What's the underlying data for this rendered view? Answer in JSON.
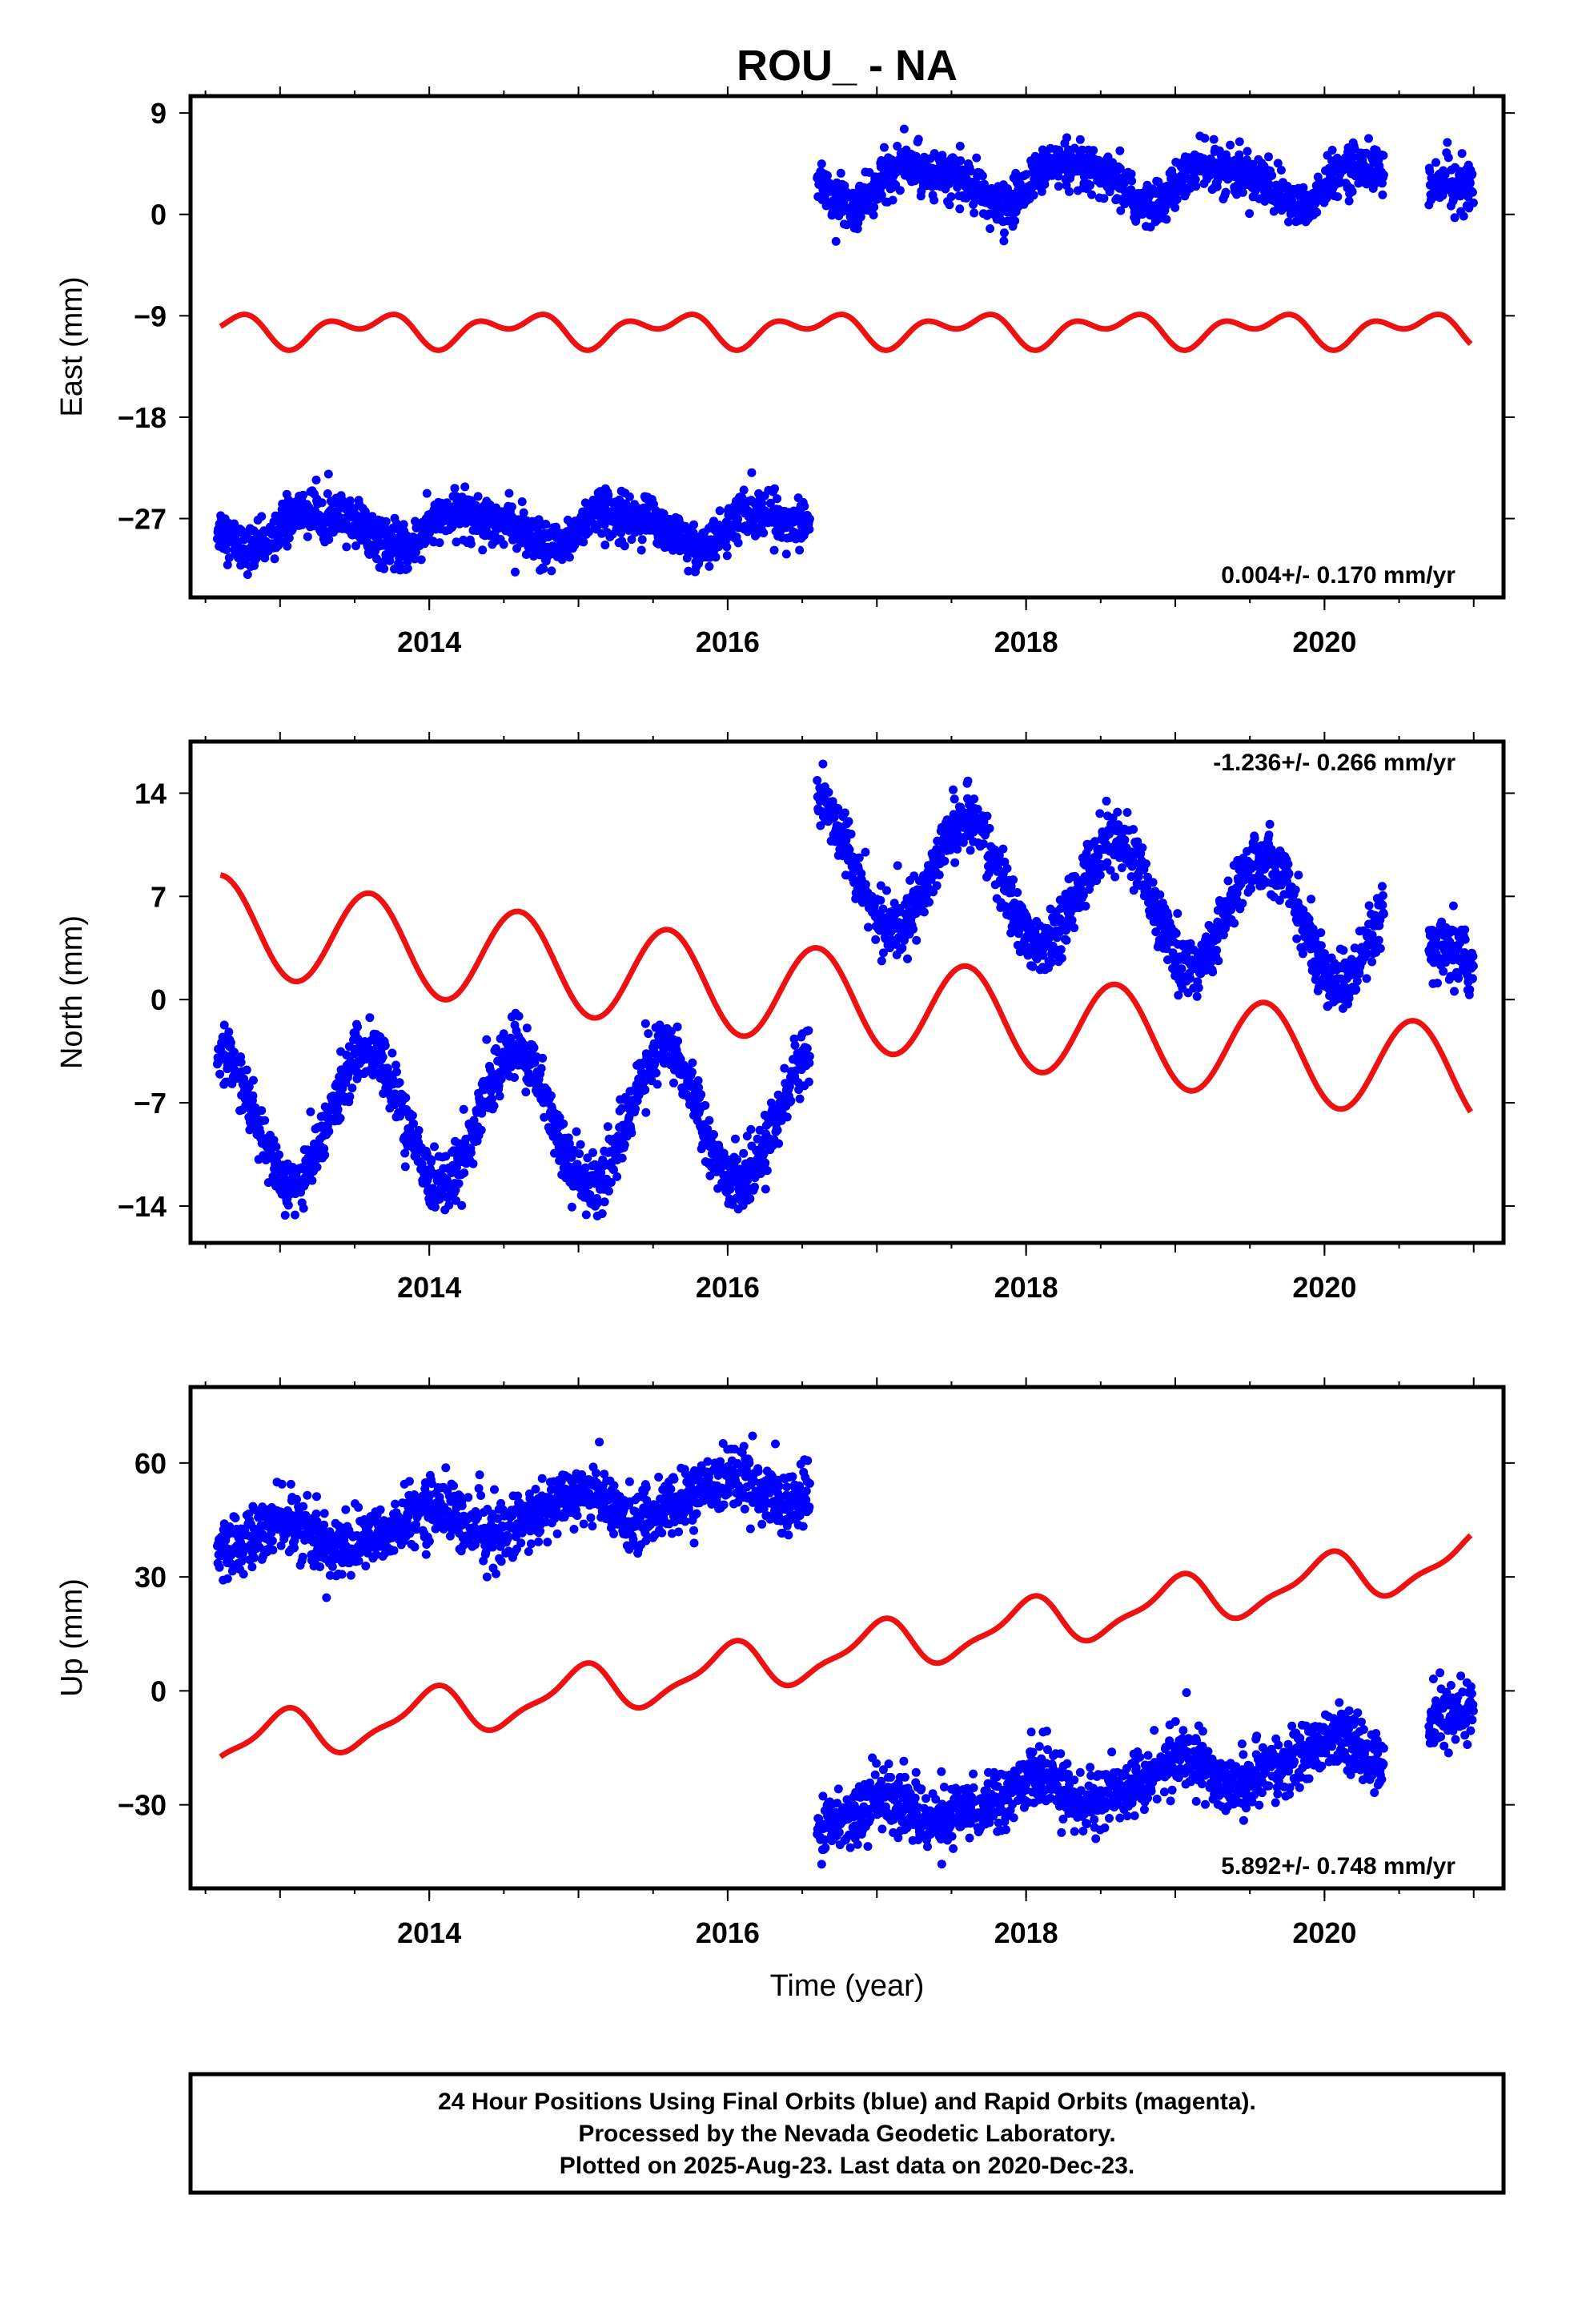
{
  "chart_data": {
    "title": "ROU_ - NA",
    "type": "scatter",
    "colors": {
      "observations": "#0000ff",
      "model": "#ee1111",
      "frame": "#000000"
    },
    "xlabel": "Time (year)",
    "xlim": [
      2012.4,
      2021.2
    ],
    "xticks": [
      2014,
      2016,
      2018,
      2020
    ],
    "panels": [
      {
        "ylabel": "East (mm)",
        "ylim": [
          -34,
          10.5
        ],
        "yticks": [
          9,
          0,
          -9,
          -18,
          -27
        ],
        "yticklabels": [
          "9",
          "0",
          "-9",
          "-18",
          "-27"
        ],
        "rate_label": "0.004+/- 0.170 mm/yr",
        "rate_label_position": "bottom-right",
        "model": {
          "type": "line",
          "offset": -10.2,
          "trend": 0.0,
          "annual_amp": 1.0,
          "annual_phase": 0.2,
          "semiannual_amp": 0.9,
          "semiannual_phase": 0.4
        },
        "observations": {
          "type": "scatter",
          "segments": [
            {
              "x_range": [
                2012.58,
                2016.55
              ],
              "mean": -27.8,
              "trend": 0.0,
              "annual_amp": 1.5,
              "annual_phase": 0.7,
              "semiannual_amp": 0.5,
              "noise": 1.0
            },
            {
              "x_range": [
                2016.6,
                2020.4
              ],
              "mean": 2.8,
              "trend": 0.0,
              "annual_amp": 1.6,
              "annual_phase": 0.7,
              "semiannual_amp": 0.5,
              "noise": 1.0
            },
            {
              "x_range": [
                2020.7,
                2021.0
              ],
              "mean": 3.0,
              "trend": 0.0,
              "annual_amp": 0.5,
              "annual_phase": 0.7,
              "semiannual_amp": 0.0,
              "noise": 1.0
            }
          ]
        }
      },
      {
        "ylabel": "North (mm)",
        "ylim": [
          -16.5,
          17.5
        ],
        "yticks": [
          14,
          7,
          0,
          -7,
          -14
        ],
        "yticklabels": [
          "14",
          "7",
          "0",
          "-7",
          "-14"
        ],
        "rate_label": "-1.236+/- 0.266 mm/yr",
        "rate_label_position": "top-right",
        "model": {
          "type": "line",
          "offset": 5.15,
          "ref_year": 2012.6,
          "trend": -1.236,
          "annual_amp": 3.3,
          "annual_phase": 0.0,
          "semiannual_amp": 0.0,
          "semiannual_phase": 0.0
        },
        "observations": {
          "type": "scatter",
          "segments": [
            {
              "x_range": [
                2012.58,
                2016.55
              ],
              "mean": -8.0,
              "trend": 0.0,
              "annual_amp": 4.5,
              "annual_phase": 0.0,
              "semiannual_amp": 0.0,
              "noise": 1.0
            },
            {
              "x_range": [
                2016.6,
                2020.4
              ],
              "mean": 7.0,
              "trend": -1.236,
              "annual_amp": 4.0,
              "annual_phase": 0.0,
              "semiannual_amp": 0.0,
              "noise": 1.0
            },
            {
              "x_range": [
                2020.7,
                2021.0
              ],
              "mean": 2.5,
              "trend": 0.0,
              "annual_amp": 0.8,
              "annual_phase": 0.0,
              "semiannual_amp": 0.0,
              "noise": 1.1
            }
          ]
        }
      },
      {
        "ylabel": "Up (mm)",
        "ylim": [
          -52,
          80
        ],
        "yticks": [
          60,
          30,
          0,
          -30
        ],
        "yticklabels": [
          "60",
          "30",
          "0",
          "-30"
        ],
        "rate_label": "5.892+/- 0.748 mm/yr",
        "rate_label_position": "bottom-right",
        "model": {
          "type": "line",
          "offset": -14.5,
          "ref_year": 2012.6,
          "trend": 5.892,
          "annual_amp": 6.0,
          "annual_phase": 0.4,
          "semiannual_amp": 2.0,
          "semiannual_phase": 0.0
        },
        "observations": {
          "type": "scatter",
          "segments": [
            {
              "x_range": [
                2012.58,
                2016.55
              ],
              "mean": 46.0,
              "trend": 4.0,
              "annual_amp": 4.0,
              "annual_phase": 0.4,
              "semiannual_amp": 1.0,
              "noise": 4.0
            },
            {
              "x_range": [
                2016.6,
                2020.4
              ],
              "mean": -25.0,
              "trend": 5.0,
              "annual_amp": 4.0,
              "annual_phase": 0.4,
              "semiannual_amp": 1.0,
              "noise": 4.0
            },
            {
              "x_range": [
                2020.7,
                2021.0
              ],
              "mean": -6.0,
              "trend": 0.0,
              "annual_amp": 1.0,
              "annual_phase": 0.4,
              "semiannual_amp": 0.0,
              "noise": 4.0
            }
          ]
        }
      }
    ],
    "footnote": [
      "24 Hour Positions Using Final Orbits (blue) and Rapid Orbits (magenta).",
      "Processed by the Nevada Geodetic Laboratory.",
      "Plotted on 2025-Aug-23. Last data on 2020-Dec-23."
    ]
  }
}
